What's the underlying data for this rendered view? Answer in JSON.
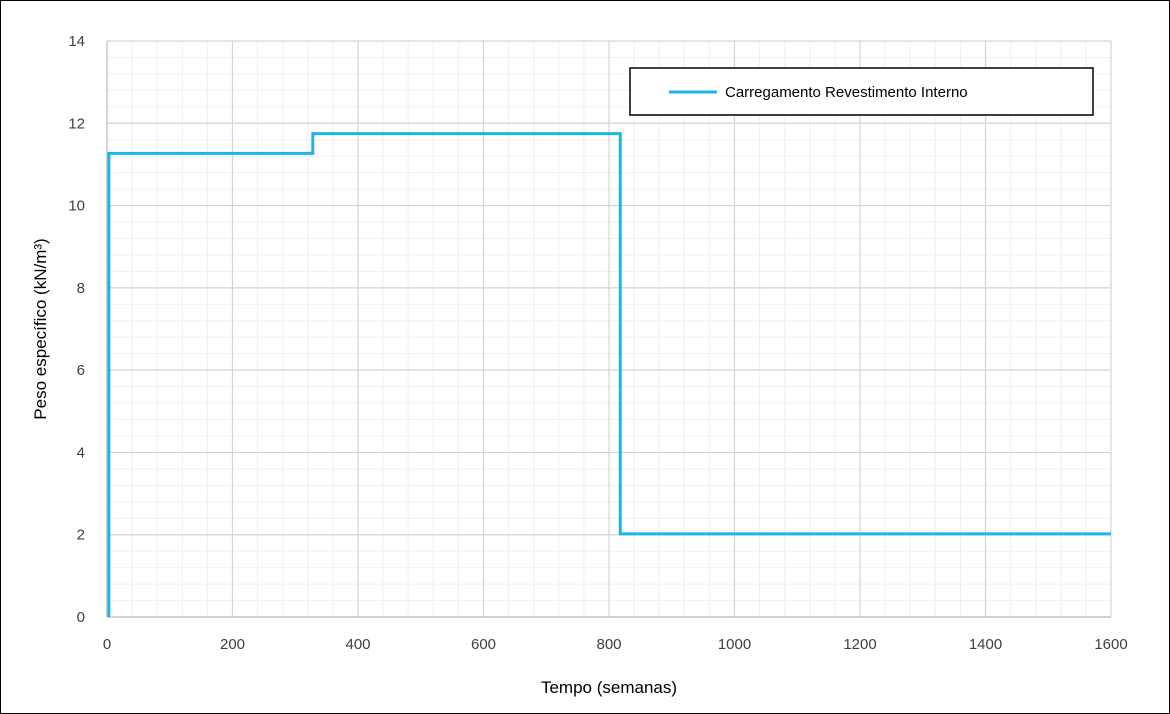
{
  "chart_data": {
    "type": "line",
    "title": "",
    "xlabel": "Tempo (semanas)",
    "ylabel": "Peso específico (kN/m³)",
    "xlim": [
      0,
      1600
    ],
    "ylim": [
      0,
      14
    ],
    "x_ticks": [
      0,
      200,
      400,
      600,
      800,
      1000,
      1200,
      1400,
      1600
    ],
    "y_ticks": [
      0,
      2,
      4,
      6,
      8,
      10,
      12,
      14
    ],
    "x_minor_step": 40,
    "y_minor_step": 0.4,
    "grid": true,
    "legend": {
      "position": "top-right",
      "entries": [
        "Carregamento Revestimento Interno"
      ]
    },
    "series": [
      {
        "name": "Carregamento Revestimento Interno",
        "color": "#1fb4e6",
        "step": true,
        "points": [
          [
            3,
            0
          ],
          [
            3,
            11.27
          ],
          [
            328,
            11.27
          ],
          [
            328,
            11.75
          ],
          [
            818,
            11.75
          ],
          [
            818,
            2.02
          ],
          [
            1600,
            2.02
          ]
        ]
      }
    ]
  }
}
